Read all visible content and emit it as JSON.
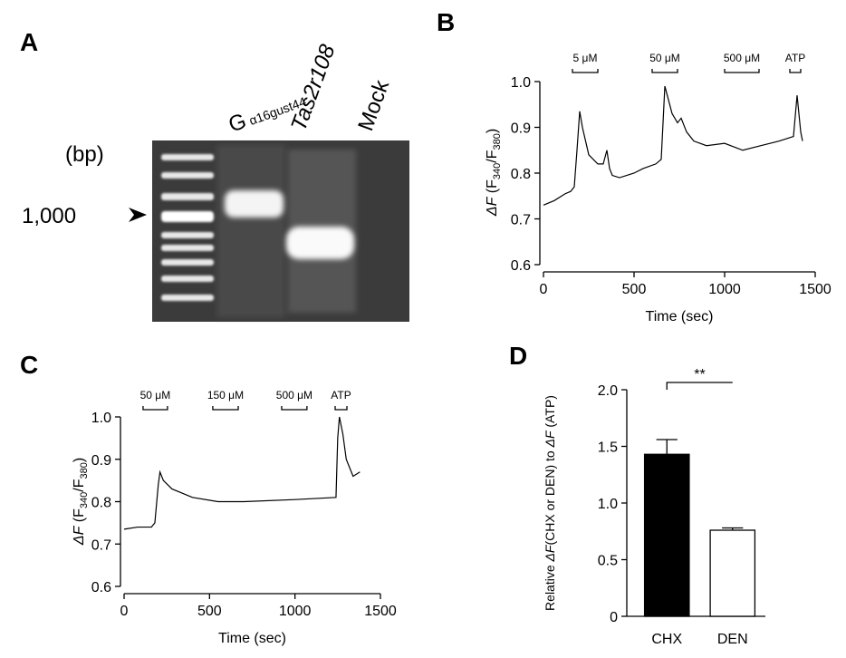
{
  "gel": {
    "panel": "A",
    "unit": "(bp)",
    "marker": "1,000",
    "lanes": [
      {
        "main": "G",
        "sub": "α16gust44"
      },
      {
        "main": "Tas2r108"
      },
      {
        "main": "Mock"
      }
    ]
  },
  "chart_data": [
    {
      "type": "line",
      "panel": "B",
      "y_label": [
        "ΔF",
        " (F",
        "340",
        "/F",
        "380",
        ")"
      ],
      "x_label": "Time (sec)",
      "xlim": [
        0,
        1500
      ],
      "xticks": [
        0,
        500,
        1000,
        1500
      ],
      "ylim": [
        0.6,
        1.0
      ],
      "yticks": [
        0.6,
        0.7,
        0.8,
        0.9,
        {
          "value": 1.0,
          "label": "1.0"
        }
      ],
      "stimuli": [
        {
          "label": "5 μM",
          "start": 160,
          "end": 300
        },
        {
          "label": "50 μM",
          "start": 600,
          "end": 740
        },
        {
          "label": "500 μM",
          "start": 1000,
          "end": 1190
        },
        {
          "label": "ATP",
          "start": 1360,
          "end": 1420
        }
      ],
      "color": "#000000",
      "x": [
        0,
        60,
        120,
        150,
        170,
        185,
        200,
        215,
        250,
        300,
        330,
        350,
        365,
        380,
        420,
        500,
        550,
        620,
        650,
        670,
        690,
        710,
        740,
        760,
        790,
        830,
        900,
        1000,
        1100,
        1200,
        1300,
        1380,
        1400,
        1420,
        1430
      ],
      "values": [
        0.73,
        0.74,
        0.755,
        0.76,
        0.77,
        0.85,
        0.935,
        0.9,
        0.84,
        0.82,
        0.82,
        0.85,
        0.81,
        0.795,
        0.79,
        0.8,
        0.81,
        0.82,
        0.83,
        0.99,
        0.96,
        0.93,
        0.91,
        0.92,
        0.89,
        0.87,
        0.86,
        0.865,
        0.85,
        0.86,
        0.87,
        0.88,
        0.97,
        0.89,
        0.87
      ]
    },
    {
      "type": "line",
      "panel": "C",
      "y_label": [
        "ΔF",
        " (F",
        "340",
        "/F",
        "380",
        ")"
      ],
      "x_label": "Time (sec)",
      "xlim": [
        0,
        1500
      ],
      "xticks": [
        0,
        500,
        1000,
        1500
      ],
      "ylim": [
        0.6,
        1.0
      ],
      "yticks": [
        0.6,
        0.7,
        0.8,
        0.9,
        {
          "value": 1.0,
          "label": "1.0"
        }
      ],
      "stimuli": [
        {
          "label": "50 μM",
          "start": 111,
          "end": 254
        },
        {
          "label": "150 μM",
          "start": 519,
          "end": 668
        },
        {
          "label": "500 μM",
          "start": 922,
          "end": 1070
        },
        {
          "label": "ATP",
          "start": 1235,
          "end": 1304
        }
      ],
      "color": "#000000",
      "x": [
        0,
        80,
        160,
        180,
        200,
        210,
        230,
        280,
        400,
        550,
        700,
        1000,
        1240,
        1250,
        1260,
        1280,
        1300,
        1320,
        1340,
        1380
      ],
      "values": [
        0.735,
        0.74,
        0.74,
        0.75,
        0.84,
        0.87,
        0.85,
        0.83,
        0.81,
        0.8,
        0.8,
        0.805,
        0.81,
        0.95,
        1.0,
        0.96,
        0.9,
        0.88,
        0.86,
        0.87
      ]
    },
    {
      "type": "bar",
      "panel": "D",
      "y_label": [
        "Relative ",
        "ΔF",
        "(CHX or DEN) to ",
        "ΔF",
        " (ATP)"
      ],
      "categories": [
        "CHX",
        "DEN"
      ],
      "values": [
        1.43,
        0.76
      ],
      "errors": [
        0.13,
        0.02
      ],
      "colors": [
        "#000000",
        "#ffffff"
      ],
      "ylim": [
        0,
        2.0
      ],
      "yticks": [
        0,
        0.5,
        {
          "value": 1.0,
          "label": "1.0"
        },
        1.5,
        {
          "value": 2.0,
          "label": "2.0"
        }
      ],
      "significance": "**"
    }
  ]
}
